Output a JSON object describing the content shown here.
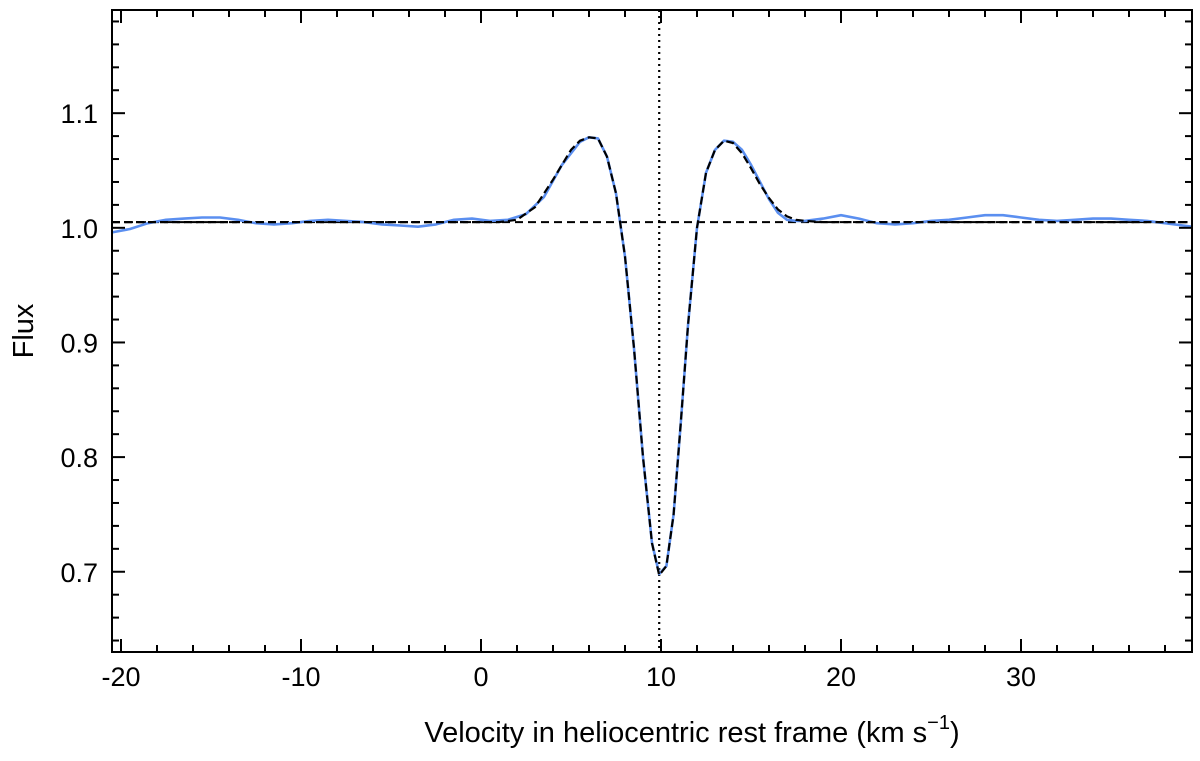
{
  "chart_data": {
    "type": "line",
    "title": "",
    "xlabel": "Velocity in heliocentric rest frame (km s",
    "xlabel_superscript": "−1",
    "xlabel_close": ")",
    "ylabel": "Flux",
    "xlim": [
      -20.5,
      39.5
    ],
    "ylim": [
      0.63,
      1.19
    ],
    "xticks": [
      -20,
      -10,
      0,
      10,
      20,
      30
    ],
    "xtick_labels": [
      "-20",
      "-10",
      "0",
      "10",
      "20",
      "30"
    ],
    "yticks": [
      0.7,
      0.8,
      0.9,
      1.0,
      1.1
    ],
    "ytick_labels": [
      "0.7",
      "0.8",
      "0.9",
      "1.0",
      "1.1"
    ],
    "minor_x_step": 2,
    "minor_y_step": 0.02,
    "grid": false,
    "legend": false,
    "vertical_line": {
      "x": 9.9,
      "style": "dotted",
      "color": "#000000"
    },
    "continuum": {
      "y": 1.005,
      "style": "dashed",
      "color": "#000000"
    },
    "series": [
      {
        "style": "solid",
        "color": "#5b8ff0",
        "x": [
          -20.5,
          -19.5,
          -18.5,
          -17.5,
          -16.5,
          -15.5,
          -14.5,
          -13.5,
          -12.5,
          -11.5,
          -10.5,
          -9.5,
          -8.5,
          -7.5,
          -6.5,
          -5.5,
          -4.5,
          -3.5,
          -2.5,
          -1.5,
          -0.5,
          0.5,
          1.5,
          2.5,
          3.5,
          4.5,
          5.5,
          6.0,
          6.5,
          7.0,
          7.5,
          8.0,
          8.5,
          9.0,
          9.5,
          9.9,
          10.3,
          10.7,
          11.1,
          11.5,
          12.0,
          12.5,
          13.0,
          13.5,
          14.0,
          14.5,
          15.0,
          15.5,
          16.0,
          16.5,
          17.0,
          17.5,
          18.0,
          19.0,
          20.0,
          21.0,
          22.0,
          23.0,
          24.0,
          25.0,
          26.0,
          27.0,
          28.0,
          29.0,
          30.0,
          31.0,
          32.0,
          33.0,
          34.0,
          35.0,
          36.0,
          37.0,
          38.0,
          39.0,
          39.5
        ],
        "y": [
          0.996,
          0.999,
          1.004,
          1.007,
          1.008,
          1.009,
          1.009,
          1.007,
          1.004,
          1.003,
          1.004,
          1.006,
          1.007,
          1.006,
          1.005,
          1.003,
          1.002,
          1.001,
          1.003,
          1.007,
          1.008,
          1.006,
          1.007,
          1.012,
          1.027,
          1.055,
          1.075,
          1.079,
          1.078,
          1.062,
          1.03,
          0.975,
          0.895,
          0.8,
          0.725,
          0.698,
          0.705,
          0.75,
          0.83,
          0.915,
          1.0,
          1.048,
          1.068,
          1.076,
          1.075,
          1.068,
          1.055,
          1.04,
          1.025,
          1.013,
          1.007,
          1.006,
          1.006,
          1.008,
          1.011,
          1.008,
          1.004,
          1.003,
          1.004,
          1.006,
          1.007,
          1.009,
          1.011,
          1.011,
          1.009,
          1.007,
          1.006,
          1.007,
          1.008,
          1.008,
          1.007,
          1.006,
          1.004,
          1.002,
          1.001
        ]
      },
      {
        "style": "dashed",
        "color": "#000000",
        "x": [
          -20.5,
          0.0,
          1.0,
          2.0,
          3.0,
          4.0,
          5.0,
          5.5,
          6.0,
          6.5,
          7.0,
          7.5,
          8.0,
          8.5,
          9.0,
          9.5,
          9.9,
          10.3,
          10.7,
          11.1,
          11.5,
          12.0,
          12.5,
          13.0,
          13.5,
          14.0,
          14.5,
          15.0,
          15.5,
          16.0,
          16.5,
          17.0,
          17.5,
          18.0,
          19.0,
          39.5
        ],
        "y": [
          1.005,
          1.005,
          1.005,
          1.007,
          1.018,
          1.042,
          1.068,
          1.076,
          1.079,
          1.078,
          1.062,
          1.03,
          0.975,
          0.895,
          0.8,
          0.725,
          0.697,
          0.705,
          0.75,
          0.83,
          0.915,
          1.0,
          1.048,
          1.068,
          1.076,
          1.074,
          1.065,
          1.052,
          1.038,
          1.026,
          1.016,
          1.01,
          1.007,
          1.006,
          1.005,
          1.005
        ]
      }
    ]
  }
}
